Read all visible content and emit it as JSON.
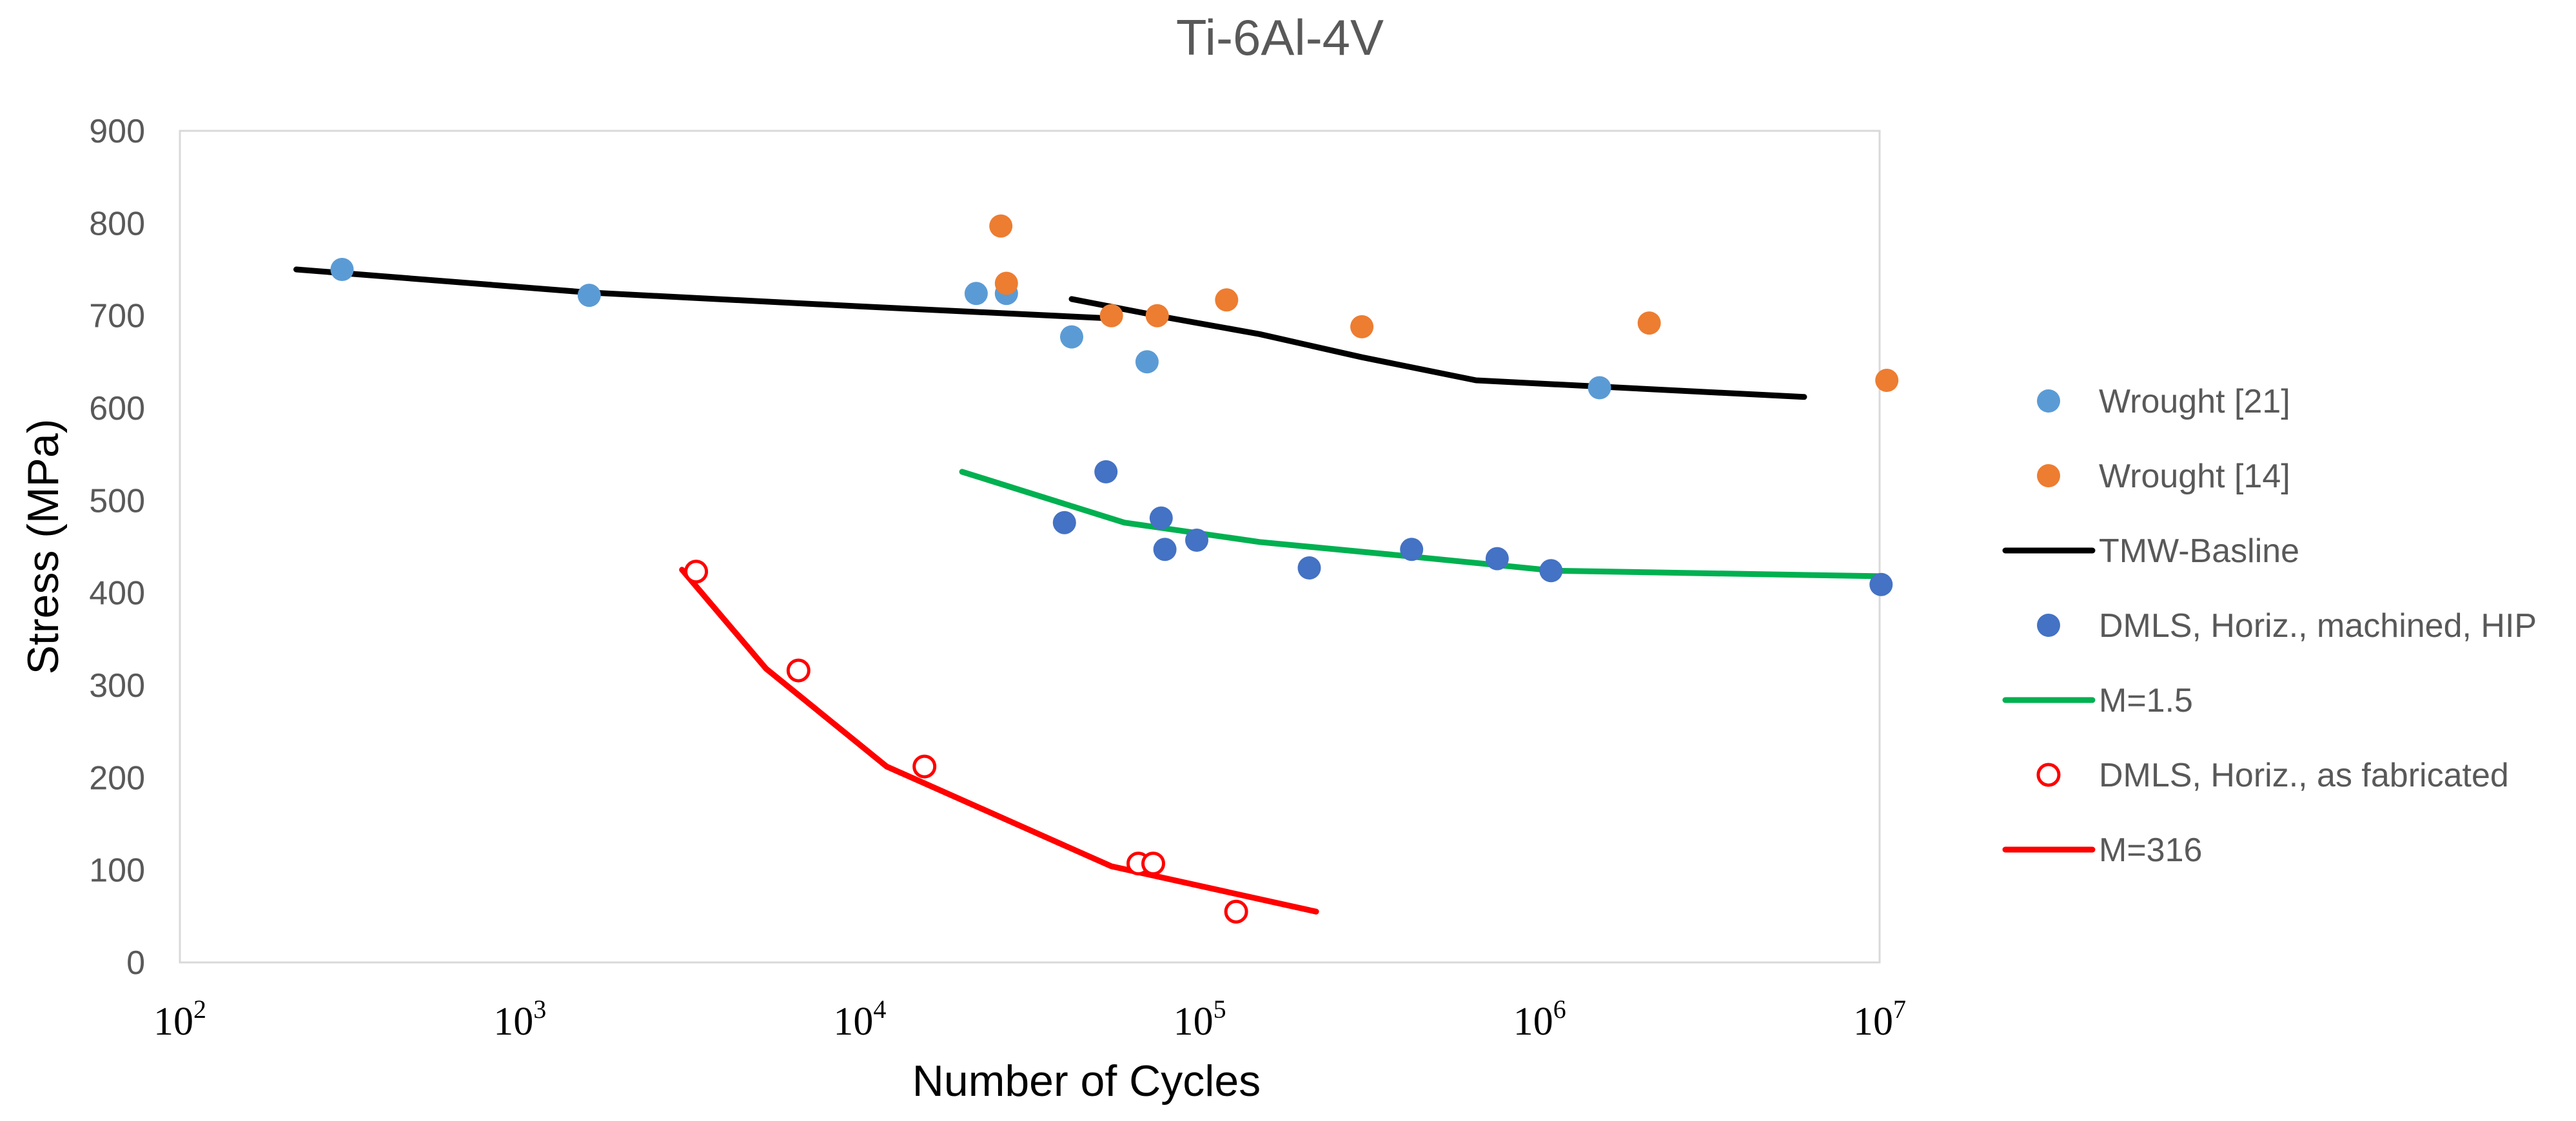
{
  "chart_data": {
    "type": "scatter",
    "title": "Ti-6Al-4V",
    "xlabel": "Number of Cycles",
    "ylabel": "Stress (MPa)",
    "xscale": "log",
    "xlim": [
      100,
      10000000
    ],
    "ylim": [
      0,
      900
    ],
    "yticks": [
      "0",
      "100",
      "200",
      "300",
      "400",
      "500",
      "600",
      "700",
      "800",
      "900"
    ],
    "xticks": [
      {
        "base": "10",
        "exp": "2",
        "value": 100
      },
      {
        "base": "10",
        "exp": "3",
        "value": 1000
      },
      {
        "base": "10",
        "exp": "4",
        "value": 10000
      },
      {
        "base": "10",
        "exp": "5",
        "value": 100000
      },
      {
        "base": "10",
        "exp": "6",
        "value": 1000000
      },
      {
        "base": "10",
        "exp": "7",
        "value": 10000000
      }
    ],
    "grid": false,
    "legend_position": "right",
    "series": [
      {
        "name": "Wrought [21]",
        "kind": "marker",
        "color": "#5B9BD5",
        "filled": true,
        "points": [
          [
            300,
            750
          ],
          [
            1600,
            722
          ],
          [
            22000,
            724
          ],
          [
            27000,
            724
          ],
          [
            42000,
            677
          ],
          [
            70000,
            650
          ],
          [
            1500000,
            622
          ]
        ]
      },
      {
        "name": "Wrought [14]",
        "kind": "marker",
        "color": "#ED7D31",
        "filled": true,
        "points": [
          [
            26000,
            797
          ],
          [
            27000,
            735
          ],
          [
            55000,
            700
          ],
          [
            75000,
            700
          ],
          [
            120000,
            717
          ],
          [
            300000,
            688
          ],
          [
            2100000,
            692
          ],
          [
            10500000,
            630
          ]
        ]
      },
      {
        "name": "TMW-Basline",
        "kind": "line",
        "color": "#000000",
        "segments": [
          [
            [
              220,
              750
            ],
            [
              1600,
              725
            ],
            [
              10000,
              710
            ],
            [
              55000,
              697
            ]
          ],
          [
            [
              42000,
              718
            ],
            [
              80000,
              698
            ],
            [
              150000,
              680
            ],
            [
              300000,
              655
            ],
            [
              650000,
              630
            ],
            [
              6000000,
              612
            ]
          ]
        ]
      },
      {
        "name": "DMLS, Horiz., machined, HIP",
        "kind": "marker",
        "color": "#4472C4",
        "filled": true,
        "points": [
          [
            40000,
            476
          ],
          [
            53000,
            531
          ],
          [
            77000,
            481
          ],
          [
            79000,
            447
          ],
          [
            98000,
            457
          ],
          [
            210000,
            427
          ],
          [
            420000,
            447
          ],
          [
            750000,
            437
          ],
          [
            1080000,
            424
          ],
          [
            10100000,
            409
          ]
        ]
      },
      {
        "name": "M=1.5",
        "kind": "line",
        "color": "#00B050",
        "segments": [
          [
            [
              20000,
              531
            ],
            [
              60000,
              476
            ],
            [
              150000,
              455
            ],
            [
              400000,
              440
            ],
            [
              1100000,
              424
            ],
            [
              10000000,
              418
            ]
          ]
        ]
      },
      {
        "name": "DMLS, Horiz., as fabricated",
        "kind": "marker",
        "color": "#FF0000",
        "filled": false,
        "points": [
          [
            3300,
            423
          ],
          [
            6600,
            316
          ],
          [
            15500,
            212
          ],
          [
            66000,
            107
          ],
          [
            73000,
            107
          ],
          [
            128000,
            55
          ]
        ]
      },
      {
        "name": "M=316",
        "kind": "line",
        "color": "#FF0000",
        "segments": [
          [
            [
              3000,
              425
            ],
            [
              5300,
              318
            ],
            [
              12000,
              212
            ],
            [
              55000,
              104
            ],
            [
              220000,
              55
            ]
          ]
        ]
      }
    ]
  }
}
